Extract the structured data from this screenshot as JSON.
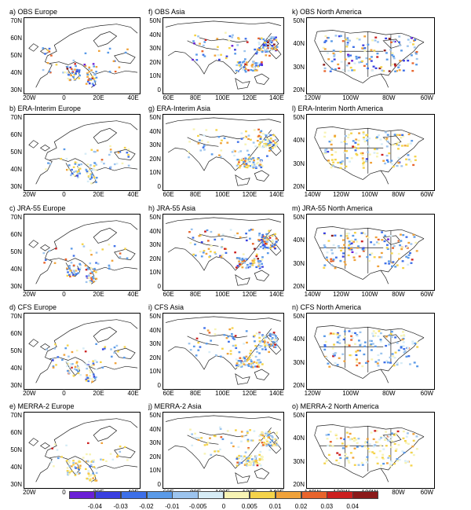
{
  "panels": [
    {
      "title": "a) OBS Europe",
      "region": "europe",
      "dataset": "obs",
      "ylabels": [
        "70N",
        "60N",
        "50N",
        "40N",
        "30N"
      ],
      "xlabels": [
        "20W",
        "0",
        "20E",
        "40E"
      ]
    },
    {
      "title": "f) OBS Asia",
      "region": "asia",
      "dataset": "obs",
      "ylabels": [
        "50N",
        "40N",
        "30N",
        "20N",
        "10N",
        "0"
      ],
      "xlabels": [
        "60E",
        "80E",
        "100E",
        "120E",
        "140E"
      ]
    },
    {
      "title": "k) OBS North America",
      "region": "namerica",
      "dataset": "obs",
      "ylabels": [
        "50N",
        "40N",
        "30N",
        "20N"
      ],
      "xlabels": [
        "120W",
        "100W",
        "80W",
        "60W"
      ]
    },
    {
      "title": "b) ERA-Interim Europe",
      "region": "europe",
      "dataset": "era",
      "ylabels": [
        "70N",
        "60N",
        "50N",
        "40N",
        "30N"
      ],
      "xlabels": [
        "20W",
        "0",
        "20E",
        "40E"
      ]
    },
    {
      "title": "g) ERA-Interim Asia",
      "region": "asia",
      "dataset": "era",
      "ylabels": [
        "50N",
        "40N",
        "30N",
        "20N",
        "10N",
        "0"
      ],
      "xlabels": [
        "60E",
        "80E",
        "100E",
        "120E",
        "140E"
      ]
    },
    {
      "title": "l) ERA-Interim North America",
      "region": "namerica",
      "dataset": "era",
      "ylabels": [
        "50N",
        "40N",
        "30N",
        "20N"
      ],
      "xlabels": [
        "140W",
        "120W",
        "100W",
        "80W",
        "60W"
      ]
    },
    {
      "title": "c) JRA-55 Europe",
      "region": "europe",
      "dataset": "jra",
      "ylabels": [
        "70N",
        "60N",
        "50N",
        "40N",
        "30N"
      ],
      "xlabels": [
        "20W",
        "0",
        "20E",
        "40E"
      ]
    },
    {
      "title": "h) JRA-55 Asia",
      "region": "asia",
      "dataset": "jra",
      "ylabels": [
        "50N",
        "40N",
        "30N",
        "20N",
        "10N",
        "0"
      ],
      "xlabels": [
        "60E",
        "80E",
        "100E",
        "120E",
        "140E"
      ]
    },
    {
      "title": "m) JRA-55 North America",
      "region": "namerica",
      "dataset": "jra",
      "ylabels": [
        "50N",
        "40N",
        "30N",
        "20N"
      ],
      "xlabels": [
        "140W",
        "120W",
        "100W",
        "80W",
        "60W"
      ]
    },
    {
      "title": "d) CFS Europe",
      "region": "europe",
      "dataset": "cfs",
      "ylabels": [
        "70N",
        "60N",
        "50N",
        "40N",
        "30N"
      ],
      "xlabels": [
        "20W",
        "0",
        "20E",
        "40E"
      ]
    },
    {
      "title": "i) CFS Asia",
      "region": "asia",
      "dataset": "cfs",
      "ylabels": [
        "50N",
        "40N",
        "30N",
        "20N",
        "10N",
        "0"
      ],
      "xlabels": [
        "60E",
        "80E",
        "100E",
        "120E",
        "140E"
      ]
    },
    {
      "title": "n) CFS North America",
      "region": "namerica",
      "dataset": "cfs",
      "ylabels": [
        "50N",
        "40N",
        "30N",
        "20N"
      ],
      "xlabels": [
        "120W",
        "100W",
        "80W",
        "60W"
      ]
    },
    {
      "title": "e) MERRA-2 Europe",
      "region": "europe",
      "dataset": "merra",
      "ylabels": [
        "70N",
        "60N",
        "50N",
        "40N",
        "30N"
      ],
      "xlabels": [
        "20W",
        "0",
        "20E",
        "40E"
      ]
    },
    {
      "title": "j) MERRA-2 Asia",
      "region": "asia",
      "dataset": "merra",
      "ylabels": [
        "50N",
        "40N",
        "30N",
        "20N",
        "10N",
        "0"
      ],
      "xlabels": [
        "60E",
        "80E",
        "100E",
        "120E",
        "140E"
      ]
    },
    {
      "title": "o) MERRA-2 North America",
      "region": "namerica",
      "dataset": "merra",
      "ylabels": [
        "50N",
        "40N",
        "30N",
        "20N"
      ],
      "xlabels": [
        "140W",
        "120W",
        "100W",
        "80W",
        "60W"
      ]
    }
  ],
  "colorbar": {
    "labels": [
      "-0.04",
      "-0.03",
      "-0.02",
      "-0.01",
      "-0.005",
      "0",
      "0.005",
      "0.01",
      "0.02",
      "0.03",
      "0.04"
    ],
    "colors": [
      "#6a1fd6",
      "#3a3fe0",
      "#3d6fe8",
      "#5a9ae8",
      "#9cc4ee",
      "#d6ecf6",
      "#f7f3b4",
      "#f5d34a",
      "#f0a23a",
      "#e8642c",
      "#cc2020",
      "#8b1a1a"
    ]
  },
  "styles": {
    "obs": {
      "weights": [
        0.02,
        0.06,
        0.14,
        0.18,
        0.12,
        0.06,
        0.06,
        0.08,
        0.12,
        0.08,
        0.05,
        0.03
      ]
    },
    "era": {
      "weights": [
        0.0,
        0.01,
        0.06,
        0.14,
        0.16,
        0.12,
        0.22,
        0.18,
        0.08,
        0.02,
        0.01,
        0.0
      ]
    },
    "jra": {
      "weights": [
        0.01,
        0.04,
        0.14,
        0.18,
        0.1,
        0.05,
        0.08,
        0.12,
        0.14,
        0.09,
        0.04,
        0.01
      ]
    },
    "cfs": {
      "weights": [
        0.0,
        0.02,
        0.1,
        0.18,
        0.16,
        0.1,
        0.14,
        0.14,
        0.1,
        0.04,
        0.02,
        0.0
      ]
    },
    "merra": {
      "weights": [
        0.0,
        0.0,
        0.02,
        0.06,
        0.1,
        0.14,
        0.3,
        0.24,
        0.1,
        0.03,
        0.01,
        0.0
      ]
    }
  }
}
